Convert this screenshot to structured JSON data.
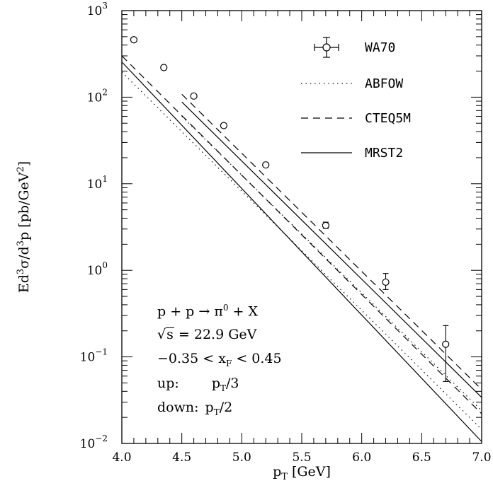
{
  "chart_data": {
    "type": "scatter",
    "xlabel": "p_T [GeV]",
    "ylabel": "Ed^3σ/d^3p [pb/GeV^2]",
    "xlim": [
      4.0,
      7.0
    ],
    "ylim": [
      0.01,
      1000
    ],
    "yscale": "log",
    "x_ticks": [
      "4.0",
      "4.5",
      "5.0",
      "5.5",
      "6.0",
      "6.5",
      "7.0"
    ],
    "y_ticks": [
      {
        "base": "10",
        "exp": "−2",
        "value": 0.01
      },
      {
        "base": "10",
        "exp": "−1",
        "value": 0.1
      },
      {
        "base": "10",
        "exp": "0",
        "value": 1
      },
      {
        "base": "10",
        "exp": "1",
        "value": 10
      },
      {
        "base": "10",
        "exp": "2",
        "value": 100
      },
      {
        "base": "10",
        "exp": "3",
        "value": 1000
      }
    ],
    "legend": {
      "position": "top-right",
      "entries": [
        "WA70",
        "ABFOW",
        "CTEQ5M",
        "MRST2"
      ]
    },
    "data_points": {
      "name": "WA70",
      "points": [
        {
          "x": 4.1,
          "y": 460,
          "ylo": 440,
          "yhi": 480
        },
        {
          "x": 4.35,
          "y": 220,
          "ylo": 212,
          "yhi": 230
        },
        {
          "x": 4.6,
          "y": 103,
          "ylo": 99,
          "yhi": 107
        },
        {
          "x": 4.85,
          "y": 47,
          "ylo": 45,
          "yhi": 49
        },
        {
          "x": 5.2,
          "y": 16.5,
          "ylo": 15.7,
          "yhi": 17.5
        },
        {
          "x": 5.7,
          "y": 3.3,
          "ylo": 3.05,
          "yhi": 3.6
        },
        {
          "x": 6.2,
          "y": 0.73,
          "ylo": 0.6,
          "yhi": 0.92
        },
        {
          "x": 6.7,
          "y": 0.14,
          "ylo": 0.052,
          "yhi": 0.23
        }
      ]
    },
    "curves": [
      {
        "name": "ABFOW",
        "style": "dotted",
        "band": "up",
        "points": [
          [
            4.5,
            60
          ],
          [
            7.0,
            0.024
          ]
        ]
      },
      {
        "name": "ABFOW",
        "style": "dotted",
        "band": "down",
        "points": [
          [
            4.0,
            195
          ],
          [
            7.0,
            0.0145
          ]
        ]
      },
      {
        "name": "CTEQ5M",
        "style": "dashed",
        "band": "up",
        "points": [
          [
            4.5,
            108
          ],
          [
            7.0,
            0.042
          ]
        ]
      },
      {
        "name": "CTEQ5M",
        "style": "dashed",
        "band": "down",
        "points": [
          [
            4.0,
            300
          ],
          [
            7.0,
            0.022
          ]
        ]
      },
      {
        "name": "MRST2",
        "style": "solid",
        "band": "up",
        "points": [
          [
            4.5,
            88
          ],
          [
            7.0,
            0.034
          ]
        ]
      },
      {
        "name": "MRST2",
        "style": "solid",
        "band": "down",
        "points": [
          [
            4.0,
            255
          ],
          [
            7.0,
            0.0105
          ]
        ]
      }
    ],
    "annotation": {
      "reaction": {
        "a": "p + p → π",
        "sup": "0",
        "b": " + X"
      },
      "energy": {
        "sqrt_arg": "s",
        "rest": " = 22.9 GeV"
      },
      "xf": {
        "a": "−0.35 < x",
        "sub": "F",
        "b": " < 0.45"
      },
      "up": {
        "label": "up:",
        "val_a": "p",
        "val_sub": "T",
        "val_b": "/3"
      },
      "down": {
        "label": "down:",
        "val_a": "p",
        "val_sub": "T",
        "val_b": "/2"
      }
    }
  }
}
